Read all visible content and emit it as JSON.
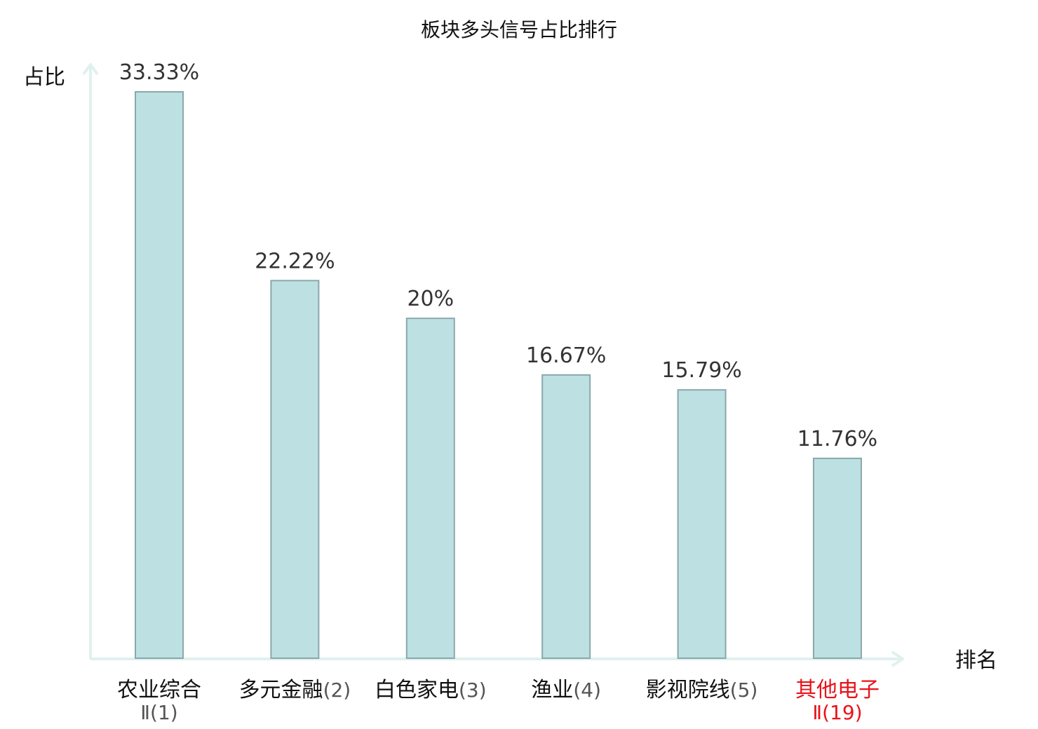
{
  "chart_data": {
    "type": "bar",
    "title": "板块多头信号占比排行",
    "ylabel": "占比",
    "xlabel": "排名",
    "ylim": [
      0,
      35
    ],
    "grid": false,
    "categories": [
      {
        "name": "农业综合",
        "rank": "Ⅱ(1)",
        "highlight": false
      },
      {
        "name": "多元金融",
        "rank": "(2)",
        "highlight": false
      },
      {
        "name": "白色家电",
        "rank": "(3)",
        "highlight": false
      },
      {
        "name": "渔业",
        "rank": "(4)",
        "highlight": false
      },
      {
        "name": "影视院线",
        "rank": "(5)",
        "highlight": false
      },
      {
        "name": "其他电子",
        "rank": "Ⅱ(19)",
        "highlight": true
      }
    ],
    "values": [
      33.33,
      22.22,
      20,
      16.67,
      15.79,
      11.76
    ],
    "value_labels": [
      "33.33%",
      "22.22%",
      "20%",
      "16.67%",
      "15.79%",
      "11.76%"
    ],
    "colors": {
      "bar_fill": "#bde0e3",
      "bar_stroke": "#8aa8aa",
      "axis": "#dff1ee",
      "text": "#111111",
      "rank_text": "#555555",
      "highlight": "#e8131b"
    }
  }
}
